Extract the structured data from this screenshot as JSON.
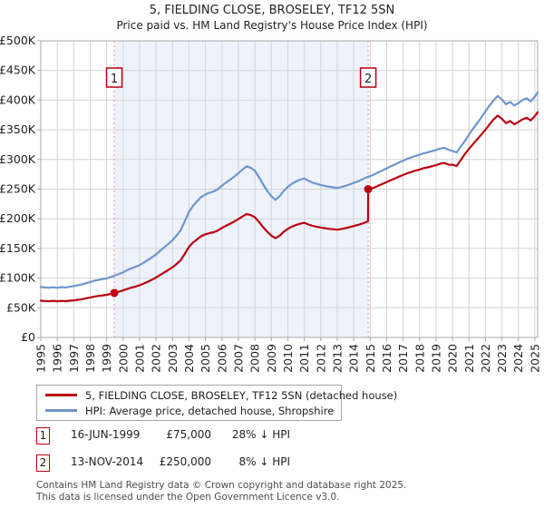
{
  "page": {
    "title": "5, FIELDING CLOSE, BROSELEY, TF12 5SN",
    "subtitle": "Price paid vs. HM Land Registry's House Price Index (HPI)"
  },
  "chart_data": {
    "type": "line",
    "x_range": [
      1995,
      2025.17
    ],
    "ylim": [
      0,
      500000
    ],
    "y_tick_step": 50000,
    "y_tick_labels": [
      "£0",
      "£50K",
      "£100K",
      "£150K",
      "£200K",
      "£250K",
      "£300K",
      "£350K",
      "£400K",
      "£450K",
      "£500K"
    ],
    "x_ticks": [
      1995,
      1996,
      1997,
      1998,
      1999,
      2000,
      2001,
      2002,
      2003,
      2004,
      2005,
      2006,
      2007,
      2008,
      2009,
      2010,
      2011,
      2012,
      2013,
      2014,
      2015,
      2016,
      2017,
      2018,
      2019,
      2020,
      2021,
      2022,
      2023,
      2024,
      2025
    ],
    "grid": true,
    "legend_position": "bottom",
    "colors": {
      "grid": "#d4d4d4",
      "border": "#a8a8a8",
      "band": "#eef2fb",
      "dashed": "#e89898",
      "accent_red": "#bb0011",
      "hpi_blue": "#6e96cd",
      "text": "#222222"
    },
    "band": {
      "from": 1999.46,
      "to": 2014.88
    },
    "sale_markers": [
      {
        "label": "1",
        "x": 1999.46,
        "value": 75000
      },
      {
        "label": "2",
        "x": 2014.88,
        "value": 250000
      }
    ],
    "series": [
      {
        "name": "5, FIELDING CLOSE, BROSELEY, TF12 5SN (detached house)",
        "color": "#bb0011",
        "points": [
          [
            1995.0,
            62000
          ],
          [
            1995.25,
            61500
          ],
          [
            1995.5,
            61000
          ],
          [
            1995.75,
            61800
          ],
          [
            1996.0,
            61000
          ],
          [
            1996.25,
            61600
          ],
          [
            1996.5,
            61200
          ],
          [
            1996.75,
            62000
          ],
          [
            1997.0,
            62500
          ],
          [
            1997.25,
            63500
          ],
          [
            1997.5,
            64500
          ],
          [
            1997.75,
            66000
          ],
          [
            1998.0,
            67500
          ],
          [
            1998.25,
            69000
          ],
          [
            1998.5,
            70000
          ],
          [
            1998.75,
            71000
          ],
          [
            1999.0,
            71800
          ],
          [
            1999.25,
            73500
          ],
          [
            1999.46,
            75000
          ],
          [
            1999.75,
            77200
          ],
          [
            2000.0,
            79300
          ],
          [
            2000.25,
            81800
          ],
          [
            2000.5,
            84000
          ],
          [
            2000.75,
            85800
          ],
          [
            2001.0,
            88000
          ],
          [
            2001.25,
            90800
          ],
          [
            2001.5,
            94100
          ],
          [
            2001.75,
            97300
          ],
          [
            2002.0,
            101000
          ],
          [
            2002.25,
            105300
          ],
          [
            2002.5,
            109600
          ],
          [
            2002.75,
            113900
          ],
          [
            2003.0,
            118300
          ],
          [
            2003.25,
            124000
          ],
          [
            2003.5,
            130500
          ],
          [
            2003.75,
            141300
          ],
          [
            2004.0,
            152900
          ],
          [
            2004.25,
            160100
          ],
          [
            2004.5,
            165800
          ],
          [
            2004.75,
            170900
          ],
          [
            2005.0,
            173800
          ],
          [
            2005.25,
            175900
          ],
          [
            2005.5,
            177400
          ],
          [
            2005.75,
            180300
          ],
          [
            2006.0,
            184600
          ],
          [
            2006.25,
            188200
          ],
          [
            2006.5,
            191800
          ],
          [
            2006.75,
            195400
          ],
          [
            2007.0,
            199700
          ],
          [
            2007.25,
            204000
          ],
          [
            2007.5,
            208000
          ],
          [
            2007.75,
            206200
          ],
          [
            2008.0,
            202600
          ],
          [
            2008.25,
            194700
          ],
          [
            2008.5,
            186000
          ],
          [
            2008.75,
            178100
          ],
          [
            2009.0,
            171600
          ],
          [
            2009.25,
            167300
          ],
          [
            2009.5,
            171600
          ],
          [
            2009.75,
            178100
          ],
          [
            2010.0,
            183200
          ],
          [
            2010.25,
            186700
          ],
          [
            2010.5,
            189600
          ],
          [
            2010.75,
            191800
          ],
          [
            2011.0,
            193200
          ],
          [
            2011.25,
            190300
          ],
          [
            2011.5,
            188200
          ],
          [
            2011.75,
            186700
          ],
          [
            2012.0,
            185300
          ],
          [
            2012.25,
            184200
          ],
          [
            2012.5,
            183100
          ],
          [
            2012.75,
            182400
          ],
          [
            2013.0,
            181700
          ],
          [
            2013.25,
            182800
          ],
          [
            2013.5,
            184200
          ],
          [
            2013.75,
            186000
          ],
          [
            2014.0,
            187800
          ],
          [
            2014.25,
            189600
          ],
          [
            2014.5,
            191800
          ],
          [
            2014.75,
            194300
          ],
          [
            2014.87,
            196000
          ],
          [
            2014.88,
            250000
          ],
          [
            2015.0,
            250500
          ],
          [
            2015.25,
            252700
          ],
          [
            2015.5,
            256000
          ],
          [
            2015.75,
            258700
          ],
          [
            2016.0,
            262000
          ],
          [
            2016.25,
            265200
          ],
          [
            2016.5,
            267900
          ],
          [
            2016.75,
            271100
          ],
          [
            2017.0,
            273900
          ],
          [
            2017.25,
            276600
          ],
          [
            2017.5,
            278900
          ],
          [
            2017.75,
            281200
          ],
          [
            2018.0,
            283100
          ],
          [
            2018.25,
            285400
          ],
          [
            2018.5,
            286700
          ],
          [
            2018.75,
            288600
          ],
          [
            2019.0,
            290400
          ],
          [
            2019.25,
            292800
          ],
          [
            2019.5,
            294200
          ],
          [
            2019.75,
            291300
          ],
          [
            2020.0,
            291000
          ],
          [
            2020.25,
            289000
          ],
          [
            2020.5,
            299000
          ],
          [
            2020.75,
            309000
          ],
          [
            2021.0,
            318000
          ],
          [
            2021.25,
            326000
          ],
          [
            2021.5,
            334000
          ],
          [
            2021.75,
            342000
          ],
          [
            2022.0,
            350000
          ],
          [
            2022.25,
            359300
          ],
          [
            2022.5,
            367600
          ],
          [
            2022.75,
            374000
          ],
          [
            2023.0,
            368500
          ],
          [
            2023.25,
            361200
          ],
          [
            2023.5,
            364900
          ],
          [
            2023.75,
            359300
          ],
          [
            2024.0,
            363000
          ],
          [
            2024.25,
            367600
          ],
          [
            2024.5,
            370400
          ],
          [
            2024.75,
            365800
          ],
          [
            2025.0,
            373100
          ],
          [
            2025.17,
            379600
          ]
        ]
      },
      {
        "name": "HPI: Average price, detached house, Shropshire",
        "color": "#6e96cd",
        "points": [
          [
            1995.0,
            85000
          ],
          [
            1995.25,
            84200
          ],
          [
            1995.5,
            83800
          ],
          [
            1995.75,
            84500
          ],
          [
            1996.0,
            83600
          ],
          [
            1996.25,
            84800
          ],
          [
            1996.5,
            84200
          ],
          [
            1996.75,
            85500
          ],
          [
            1997.0,
            86500
          ],
          [
            1997.25,
            88000
          ],
          [
            1997.5,
            89500
          ],
          [
            1997.75,
            91500
          ],
          [
            1998.0,
            93500
          ],
          [
            1998.25,
            95500
          ],
          [
            1998.5,
            97000
          ],
          [
            1998.75,
            98500
          ],
          [
            1999.0,
            99500
          ],
          [
            1999.25,
            102000
          ],
          [
            1999.5,
            104500
          ],
          [
            1999.75,
            107000
          ],
          [
            2000.0,
            110000
          ],
          [
            2000.25,
            113500
          ],
          [
            2000.5,
            116500
          ],
          [
            2000.75,
            119000
          ],
          [
            2001.0,
            122000
          ],
          [
            2001.25,
            126000
          ],
          [
            2001.5,
            130500
          ],
          [
            2001.75,
            135000
          ],
          [
            2002.0,
            140000
          ],
          [
            2002.25,
            146000
          ],
          [
            2002.5,
            152000
          ],
          [
            2002.75,
            158000
          ],
          [
            2003.0,
            164000
          ],
          [
            2003.25,
            172000
          ],
          [
            2003.5,
            181000
          ],
          [
            2003.75,
            196000
          ],
          [
            2004.0,
            212000
          ],
          [
            2004.25,
            222000
          ],
          [
            2004.5,
            230000
          ],
          [
            2004.75,
            237000
          ],
          [
            2005.0,
            241000
          ],
          [
            2005.25,
            244000
          ],
          [
            2005.5,
            246000
          ],
          [
            2005.75,
            250000
          ],
          [
            2006.0,
            256000
          ],
          [
            2006.25,
            261000
          ],
          [
            2006.5,
            266000
          ],
          [
            2006.75,
            271000
          ],
          [
            2007.0,
            277000
          ],
          [
            2007.25,
            283000
          ],
          [
            2007.5,
            288500
          ],
          [
            2007.75,
            286000
          ],
          [
            2008.0,
            281000
          ],
          [
            2008.25,
            270000
          ],
          [
            2008.5,
            258000
          ],
          [
            2008.75,
            247000
          ],
          [
            2009.0,
            238000
          ],
          [
            2009.25,
            232000
          ],
          [
            2009.5,
            238000
          ],
          [
            2009.75,
            247000
          ],
          [
            2010.0,
            254000
          ],
          [
            2010.25,
            259000
          ],
          [
            2010.5,
            263000
          ],
          [
            2010.75,
            266000
          ],
          [
            2011.0,
            268000
          ],
          [
            2011.25,
            264000
          ],
          [
            2011.5,
            261000
          ],
          [
            2011.75,
            259000
          ],
          [
            2012.0,
            257000
          ],
          [
            2012.25,
            255500
          ],
          [
            2012.5,
            254000
          ],
          [
            2012.75,
            253000
          ],
          [
            2013.0,
            252000
          ],
          [
            2013.25,
            253500
          ],
          [
            2013.5,
            255500
          ],
          [
            2013.75,
            258000
          ],
          [
            2014.0,
            260500
          ],
          [
            2014.25,
            263000
          ],
          [
            2014.5,
            266000
          ],
          [
            2014.75,
            269500
          ],
          [
            2015.0,
            272000
          ],
          [
            2015.25,
            275000
          ],
          [
            2015.5,
            278500
          ],
          [
            2015.75,
            281500
          ],
          [
            2016.0,
            285000
          ],
          [
            2016.25,
            288500
          ],
          [
            2016.5,
            291500
          ],
          [
            2016.75,
            295000
          ],
          [
            2017.0,
            298000
          ],
          [
            2017.25,
            301000
          ],
          [
            2017.5,
            303500
          ],
          [
            2017.75,
            306000
          ],
          [
            2018.0,
            308000
          ],
          [
            2018.25,
            310500
          ],
          [
            2018.5,
            312000
          ],
          [
            2018.75,
            314000
          ],
          [
            2019.0,
            316000
          ],
          [
            2019.25,
            318500
          ],
          [
            2019.5,
            319500
          ],
          [
            2019.75,
            316500
          ],
          [
            2020.0,
            314000
          ],
          [
            2020.25,
            312000
          ],
          [
            2020.5,
            322000
          ],
          [
            2020.75,
            331000
          ],
          [
            2021.0,
            342000
          ],
          [
            2021.25,
            352000
          ],
          [
            2021.5,
            361000
          ],
          [
            2021.75,
            371000
          ],
          [
            2022.0,
            381000
          ],
          [
            2022.25,
            391000
          ],
          [
            2022.5,
            400000
          ],
          [
            2022.75,
            407000
          ],
          [
            2023.0,
            401000
          ],
          [
            2023.25,
            393000
          ],
          [
            2023.5,
            397000
          ],
          [
            2023.75,
            391000
          ],
          [
            2024.0,
            395000
          ],
          [
            2024.25,
            400000
          ],
          [
            2024.5,
            403000
          ],
          [
            2024.75,
            398000
          ],
          [
            2025.0,
            406000
          ],
          [
            2025.17,
            413000
          ]
        ]
      }
    ]
  },
  "transactions": [
    {
      "num": "1",
      "date": "16-JUN-1999",
      "price": "£75,000",
      "vs_hpi": "28% ↓ HPI"
    },
    {
      "num": "2",
      "date": "13-NOV-2014",
      "price": "£250,000",
      "vs_hpi": "8% ↓ HPI"
    }
  ],
  "footer": {
    "line1": "Contains HM Land Registry data © Crown copyright and database right 2025.",
    "line2": "This data is licensed under the Open Government Licence v3.0."
  }
}
